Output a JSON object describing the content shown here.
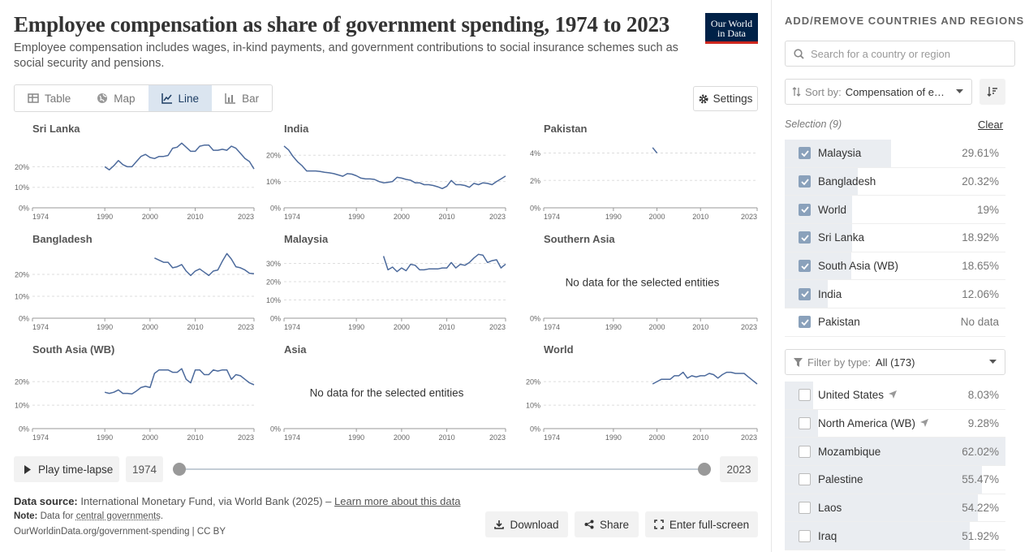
{
  "header": {
    "title": "Employee compensation as share of government spending, 1974 to 2023",
    "subtitle": "Employee compensation includes wages, in-kind payments, and government contributions to social insurance schemes such as social security and pensions.",
    "logo_line1": "Our World",
    "logo_line2": "in Data"
  },
  "tabs": [
    {
      "label": "Table",
      "icon": "table-icon",
      "active": false
    },
    {
      "label": "Map",
      "icon": "globe-icon",
      "active": false
    },
    {
      "label": "Line",
      "icon": "line-chart-icon",
      "active": true
    },
    {
      "label": "Bar",
      "icon": "bar-chart-icon",
      "active": false
    }
  ],
  "settings_label": "Settings",
  "no_data_text": "No data for the selected entities",
  "colors": {
    "line": "#4c6a9c",
    "accent": "#002147",
    "logo_stripe": "#ce261e"
  },
  "chart_data": [
    {
      "type": "line",
      "title": "Sri Lanka",
      "x": [
        1990,
        1991,
        1992,
        1993,
        1994,
        1995,
        1996,
        1997,
        1998,
        1999,
        2000,
        2001,
        2002,
        2003,
        2004,
        2005,
        2006,
        2007,
        2008,
        2009,
        2010,
        2011,
        2012,
        2013,
        2014,
        2015,
        2016,
        2017,
        2018,
        2019,
        2020,
        2021,
        2022,
        2023
      ],
      "y": [
        20,
        18.5,
        20.5,
        23,
        21,
        20,
        20,
        22.5,
        25,
        26,
        24.5,
        24,
        25,
        25,
        25.5,
        29,
        29.5,
        31.5,
        29.5,
        27.5,
        27.5,
        30,
        30.5,
        30.5,
        28,
        28,
        28.5,
        28,
        30,
        29,
        26.5,
        24,
        22.5,
        18.92
      ],
      "ylim": [
        0,
        32
      ],
      "yticks": [
        0,
        10,
        20
      ],
      "xlim": [
        1974,
        2023
      ],
      "xticks": [
        1974,
        1990,
        2000,
        2010,
        2023
      ]
    },
    {
      "type": "line",
      "title": "India",
      "x": [
        1974,
        1975,
        1976,
        1977,
        1978,
        1979,
        1980,
        1981,
        1982,
        1983,
        1984,
        1985,
        1986,
        1987,
        1988,
        1989,
        1990,
        1991,
        1992,
        1993,
        1994,
        1995,
        1996,
        1997,
        1998,
        1999,
        2000,
        2001,
        2002,
        2003,
        2004,
        2005,
        2006,
        2007,
        2008,
        2009,
        2010,
        2011,
        2012,
        2013,
        2014,
        2015,
        2016,
        2017,
        2018,
        2019,
        2020,
        2021,
        2022,
        2023
      ],
      "y": [
        23.5,
        22,
        19.5,
        17.5,
        16,
        14,
        14,
        14,
        13.8,
        13.5,
        13.3,
        13,
        12.5,
        12,
        13,
        12.8,
        12.2,
        11.3,
        11,
        11,
        10.8,
        10,
        9.5,
        9.7,
        10,
        11.6,
        11.3,
        10.8,
        10.5,
        9.5,
        9.5,
        8.8,
        8.8,
        8.5,
        8,
        7.3,
        8.2,
        10.4,
        8.8,
        8.8,
        8.5,
        7.8,
        9.3,
        8.8,
        9.5,
        9.3,
        8.8,
        10,
        11,
        12.06
      ],
      "ylim": [
        0,
        25
      ],
      "yticks": [
        0,
        10,
        20
      ],
      "xlim": [
        1974,
        2023
      ],
      "xticks": [
        1974,
        1990,
        2000,
        2010,
        2023
      ]
    },
    {
      "type": "line",
      "title": "Pakistan",
      "x": [
        1999,
        2000
      ],
      "y": [
        4.4,
        4.0
      ],
      "ylim": [
        0,
        4.8
      ],
      "yticks": [
        0,
        2,
        4
      ],
      "yunit": "%",
      "xlim": [
        1974,
        2023
      ],
      "xticks": [
        1974,
        1990,
        2000,
        2010,
        2023
      ]
    },
    {
      "type": "line",
      "title": "Bangladesh",
      "x": [
        2001,
        2002,
        2003,
        2004,
        2005,
        2006,
        2007,
        2008,
        2009,
        2010,
        2011,
        2012,
        2013,
        2014,
        2015,
        2016,
        2017,
        2018,
        2019,
        2020,
        2021,
        2022,
        2023
      ],
      "y": [
        27.5,
        26.5,
        25.5,
        25.5,
        23,
        23.5,
        24.5,
        21.5,
        19.5,
        21.5,
        22.5,
        21,
        19.5,
        21.5,
        22,
        26,
        29.5,
        27,
        23.5,
        23,
        22,
        20.5,
        20.32
      ],
      "ylim": [
        0,
        30
      ],
      "yticks": [
        0,
        10,
        20
      ],
      "xlim": [
        1974,
        2023
      ],
      "xticks": [
        1974,
        1990,
        2000,
        2010,
        2023
      ]
    },
    {
      "type": "line",
      "title": "Malaysia",
      "x": [
        1996,
        1997,
        1998,
        1999,
        2000,
        2001,
        2002,
        2003,
        2004,
        2005,
        2006,
        2007,
        2008,
        2009,
        2010,
        2011,
        2012,
        2013,
        2014,
        2015,
        2016,
        2017,
        2018,
        2019,
        2020,
        2021,
        2022,
        2023
      ],
      "y": [
        34,
        26.5,
        28,
        25.5,
        27.5,
        26,
        29.5,
        29,
        26.5,
        26.5,
        27,
        27,
        27,
        27.5,
        27.5,
        30.5,
        27.5,
        29.5,
        29,
        30.5,
        33,
        35,
        34.5,
        30.5,
        31.5,
        32,
        27.5,
        29.61
      ],
      "ylim": [
        0,
        36
      ],
      "yticks": [
        0,
        10,
        20,
        30
      ],
      "xlim": [
        1974,
        2023
      ],
      "xticks": [
        1974,
        1990,
        2000,
        2010,
        2023
      ]
    },
    {
      "type": "line",
      "title": "Southern Asia",
      "x": [],
      "y": [],
      "ylim": [
        0,
        1
      ],
      "yticks": [
        0
      ],
      "xlim": [
        1974,
        2023
      ],
      "xticks": [
        1974,
        1990,
        2000,
        2010,
        2023
      ],
      "nodata": true
    },
    {
      "type": "line",
      "title": "South Asia (WB)",
      "x": [
        1990,
        1991,
        1992,
        1993,
        1994,
        1995,
        1996,
        1997,
        1998,
        1999,
        2000,
        2001,
        2002,
        2003,
        2004,
        2005,
        2006,
        2007,
        2008,
        2009,
        2010,
        2011,
        2012,
        2013,
        2014,
        2015,
        2016,
        2017,
        2018,
        2019,
        2020,
        2021,
        2022,
        2023
      ],
      "y": [
        15.5,
        15,
        15.5,
        16.5,
        15,
        15,
        14.8,
        16,
        17.5,
        18,
        17.5,
        23.5,
        25,
        25,
        25,
        24,
        24,
        25.5,
        21,
        19.5,
        25,
        25,
        23,
        23,
        25,
        24.5,
        25,
        25,
        21,
        23,
        22.5,
        21,
        19.5,
        18.65
      ],
      "ylim": [
        0,
        28
      ],
      "yticks": [
        0,
        10,
        20
      ],
      "xlim": [
        1974,
        2023
      ],
      "xticks": [
        1974,
        1990,
        2000,
        2010,
        2023
      ]
    },
    {
      "type": "line",
      "title": "Asia",
      "x": [],
      "y": [],
      "ylim": [
        0,
        1
      ],
      "yticks": [
        0
      ],
      "xlim": [
        1974,
        2023
      ],
      "xticks": [
        1974,
        1990,
        2000,
        2010,
        2023
      ],
      "nodata": true
    },
    {
      "type": "line",
      "title": "World",
      "x": [
        1999,
        2000,
        2001,
        2002,
        2003,
        2004,
        2005,
        2006,
        2007,
        2008,
        2009,
        2010,
        2011,
        2012,
        2013,
        2014,
        2015,
        2016,
        2017,
        2018,
        2019,
        2020,
        2021,
        2022,
        2023
      ],
      "y": [
        19,
        20,
        21,
        21,
        21,
        22.5,
        22.5,
        24,
        21.5,
        22.5,
        22,
        22.5,
        22.5,
        23.5,
        23,
        21.5,
        23,
        24,
        24,
        23.5,
        23.5,
        23.5,
        22,
        20.5,
        19
      ],
      "ylim": [
        0,
        28
      ],
      "yticks": [
        0,
        10,
        20
      ],
      "xlim": [
        1974,
        2023
      ],
      "xticks": [
        1974,
        1990,
        2000,
        2010,
        2023
      ]
    }
  ],
  "timeline": {
    "play_label": "Play time-lapse",
    "start_year": "1974",
    "end_year": "2023",
    "start_fraction": 0,
    "end_fraction": 1
  },
  "footer": {
    "source_label": "Data source:",
    "source_text": "International Monetary Fund, via World Bank (2025) –",
    "learn_more": "Learn more about this data",
    "note_label": "Note:",
    "note_text": "Data for",
    "note_link": "central governments",
    "note_end": ".",
    "url": "OurWorldinData.org/government-spending | CC BY"
  },
  "actions": {
    "download": "Download",
    "share": "Share",
    "fullscreen": "Enter full-screen"
  },
  "panel": {
    "title": "ADD/REMOVE COUNTRIES AND REGIONS",
    "search_placeholder": "Search for a country or region",
    "sort_prefix": "Sort by:",
    "sort_value": "Compensation of employees",
    "selection_label": "Selection (9)",
    "clear_label": "Clear",
    "selected": [
      {
        "name": "Malaysia",
        "value": "29.61%",
        "share": 0.48,
        "checked": true
      },
      {
        "name": "Bangladesh",
        "value": "20.32%",
        "share": 0.33,
        "checked": true
      },
      {
        "name": "World",
        "value": "19%",
        "share": 0.306,
        "checked": true
      },
      {
        "name": "Sri Lanka",
        "value": "18.92%",
        "share": 0.305,
        "checked": true
      },
      {
        "name": "South Asia (WB)",
        "value": "18.65%",
        "share": 0.3,
        "checked": true
      },
      {
        "name": "India",
        "value": "12.06%",
        "share": 0.195,
        "checked": true
      },
      {
        "name": "Pakistan",
        "value": "No data",
        "share": 0,
        "checked": true
      }
    ],
    "filter_prefix": "Filter by type:",
    "filter_value": "All (173)",
    "others": [
      {
        "name": "United States",
        "value": "8.03%",
        "share": 0.13,
        "checked": false,
        "arrow": true
      },
      {
        "name": "North America (WB)",
        "value": "9.28%",
        "share": 0.15,
        "checked": false,
        "arrow": true
      },
      {
        "name": "Mozambique",
        "value": "62.02%",
        "share": 1.0,
        "checked": false
      },
      {
        "name": "Palestine",
        "value": "55.47%",
        "share": 0.894,
        "checked": false
      },
      {
        "name": "Laos",
        "value": "54.22%",
        "share": 0.874,
        "checked": false
      },
      {
        "name": "Iraq",
        "value": "51.92%",
        "share": 0.837,
        "checked": false
      }
    ]
  }
}
